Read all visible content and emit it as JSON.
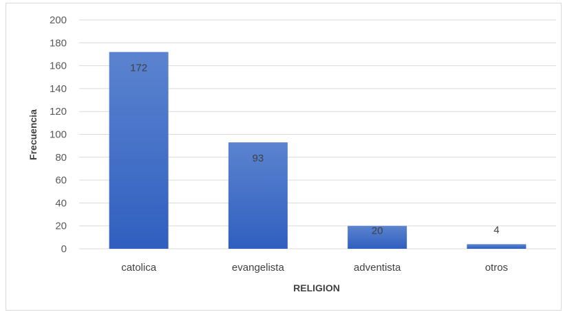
{
  "chart_data": {
    "type": "bar",
    "categories": [
      "catolica",
      "evangelista",
      "adventista",
      "otros"
    ],
    "values": [
      172,
      93,
      20,
      4
    ],
    "data_labels": [
      "172",
      "93",
      "20",
      "4"
    ],
    "title": "",
    "xlabel": "RELIGION",
    "ylabel": "Frecuencia",
    "ylim": [
      0,
      200
    ],
    "yticks": [
      0,
      20,
      40,
      60,
      80,
      100,
      120,
      140,
      160,
      180,
      200
    ],
    "grid": true,
    "legend": "none",
    "colors": {
      "bar_top": "#5b83cf",
      "bar_bottom": "#2f5fbf",
      "grid": "#d9d9d9"
    }
  }
}
